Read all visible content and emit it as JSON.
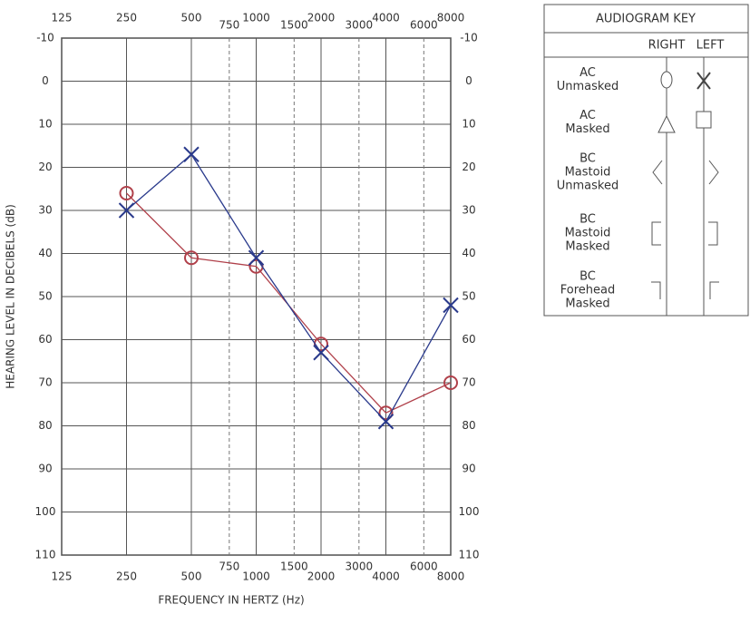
{
  "chart_data": {
    "type": "line",
    "xlabel": "FREQUENCY IN HERTZ (Hz)",
    "ylabel": "HEARING LEVEL IN DECIBELS (dB)",
    "x": [
      250,
      500,
      1000,
      2000,
      4000,
      8000
    ],
    "xscale": "log",
    "xlim": [
      125,
      8000
    ],
    "xticks": [
      125,
      250,
      500,
      1000,
      2000,
      4000,
      8000
    ],
    "minor_xticks": [
      750,
      1500,
      3000,
      6000
    ],
    "ylim": [
      -10,
      110
    ],
    "y_inverted": true,
    "yticks": [
      -10,
      0,
      10,
      20,
      30,
      40,
      50,
      60,
      70,
      80,
      90,
      100,
      110
    ],
    "grid": true,
    "series": [
      {
        "color": "#b0404a",
        "marker": "circle",
        "values": [
          26,
          41,
          43,
          61,
          77,
          70
        ]
      },
      {
        "color": "#2a3a8c",
        "marker": "x",
        "values": [
          30,
          17,
          41,
          63,
          79,
          52
        ]
      }
    ]
  },
  "key": {
    "title": "AUDIOGRAM KEY",
    "columns": [
      "RIGHT",
      "LEFT"
    ],
    "rows": [
      [
        "AC",
        "Unmasked"
      ],
      [
        "AC",
        "Masked"
      ],
      [
        "BC",
        "Mastoid",
        "Unmasked"
      ],
      [
        "BC",
        "Mastoid",
        "Masked"
      ],
      [
        "BC",
        "Forehead",
        "Masked"
      ]
    ]
  }
}
